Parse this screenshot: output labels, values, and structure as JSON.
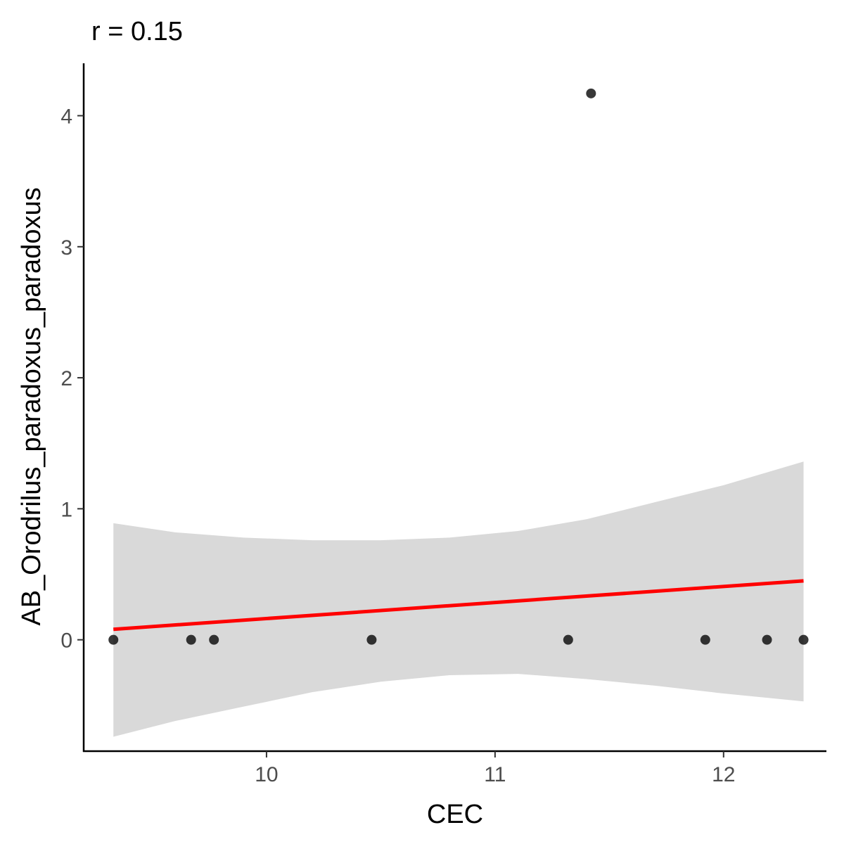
{
  "chart_data": {
    "type": "scatter",
    "title": "r = 0.15",
    "xlabel": "CEC",
    "ylabel": "AB_Orodrilus_paradoxus_paradoxus",
    "xlim": [
      9.2,
      12.45
    ],
    "ylim": [
      -0.85,
      4.4
    ],
    "xticks": [
      10,
      11,
      12
    ],
    "yticks": [
      0,
      1,
      2,
      3,
      4
    ],
    "grid": false,
    "points": [
      {
        "x": 9.33,
        "y": 0
      },
      {
        "x": 9.67,
        "y": 0
      },
      {
        "x": 9.77,
        "y": 0
      },
      {
        "x": 10.46,
        "y": 0
      },
      {
        "x": 11.32,
        "y": 0
      },
      {
        "x": 11.42,
        "y": 4.17
      },
      {
        "x": 11.92,
        "y": 0
      },
      {
        "x": 12.19,
        "y": 0
      },
      {
        "x": 12.35,
        "y": 0
      }
    ],
    "fit_line": {
      "x": [
        9.33,
        12.35
      ],
      "y": [
        0.08,
        0.45
      ],
      "color": "#ff0000"
    },
    "confidence_band": {
      "x": [
        9.33,
        9.6,
        9.9,
        10.2,
        10.5,
        10.8,
        11.1,
        11.4,
        11.7,
        12.0,
        12.35
      ],
      "upper": [
        0.89,
        0.82,
        0.78,
        0.76,
        0.76,
        0.78,
        0.83,
        0.92,
        1.05,
        1.18,
        1.36
      ],
      "lower": [
        -0.74,
        -0.62,
        -0.51,
        -0.4,
        -0.32,
        -0.27,
        -0.26,
        -0.3,
        -0.35,
        -0.41,
        -0.47
      ],
      "color": "#d9d9d9"
    },
    "colors": {
      "points": "#000000",
      "fit": "#ff0000",
      "band": "#d9d9d9",
      "axis": "#000000"
    }
  }
}
